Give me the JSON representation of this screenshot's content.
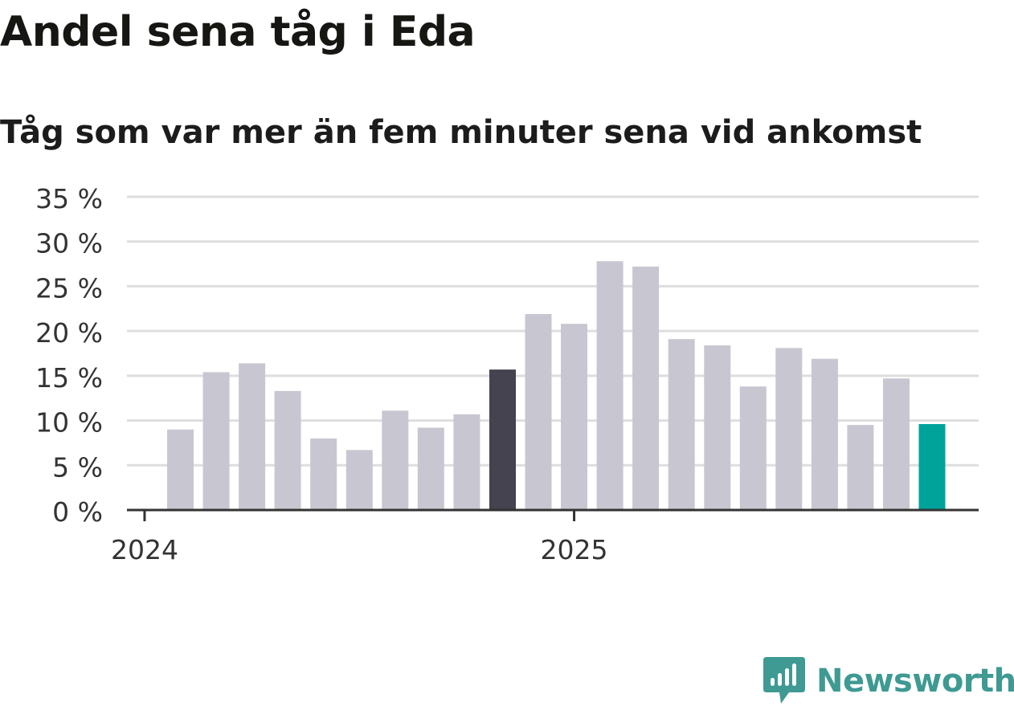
{
  "chart_data": {
    "type": "bar",
    "title": "Andel sena tåg i Eda",
    "subtitle": "Tåg som var mer än fem minuter sena vid ankomst",
    "y_ticks": [
      "0 %",
      "5 %",
      "10 %",
      "15 %",
      "20 %",
      "25 %",
      "30 %",
      "35 %"
    ],
    "x_ticks": [
      "2024",
      "2025"
    ],
    "ylim": [
      0,
      35
    ],
    "grid": true,
    "values": [
      9.0,
      15.4,
      16.4,
      13.3,
      8.0,
      6.7,
      11.1,
      9.2,
      10.7,
      15.7,
      21.9,
      20.8,
      27.8,
      27.2,
      19.1,
      18.4,
      13.8,
      18.1,
      16.9,
      9.5,
      14.7,
      9.6
    ],
    "highlight": [
      {
        "index": 9,
        "color": "#45434f"
      },
      {
        "index": 21,
        "color": "#00a39a"
      }
    ],
    "bar_color": "#c8c7d1",
    "grid_color": "#dedede",
    "axis_color": "#333333"
  },
  "brand": {
    "name": "Newsworthy",
    "color": "#3e9a93",
    "icon": "newsworthy-logo-icon"
  }
}
